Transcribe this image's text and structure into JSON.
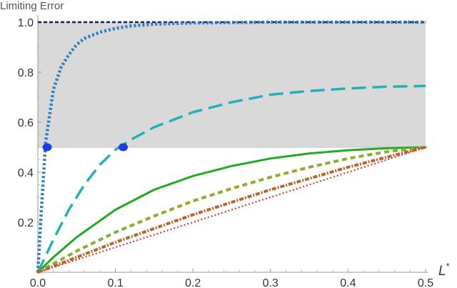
{
  "chart_data": {
    "type": "line",
    "title": "",
    "ylabel": "Limiting Error",
    "xlabel": "L",
    "xlabel_sup": "*",
    "xlim": [
      0,
      0.5
    ],
    "ylim": [
      0,
      1.0
    ],
    "xticks": [
      0.0,
      0.1,
      0.2,
      0.3,
      0.4,
      0.5
    ],
    "xtick_labels": [
      "0.0",
      "0.1",
      "0.2",
      "0.3",
      "0.4",
      "0.5"
    ],
    "yticks": [
      0.2,
      0.4,
      0.6,
      0.8,
      1.0
    ],
    "ytick_labels": [
      "0.2",
      "0.4",
      "0.6",
      "0.8",
      "1.0"
    ],
    "grid": false,
    "legend": "none",
    "shaded_region": {
      "x": [
        0,
        0.5
      ],
      "y": [
        0.5,
        1.0
      ],
      "color": "#d9d9d9"
    },
    "reference_line": {
      "y": 0.5,
      "color": "#cccccc"
    },
    "series": [
      {
        "style": "dashed-dark",
        "color": "#1a1a5e",
        "x": [
          0.0,
          0.5
        ],
        "y": [
          1.0,
          1.0
        ]
      },
      {
        "style": "dotted",
        "color": "#2e7fbf",
        "x": [
          0.0,
          0.005,
          0.01,
          0.02,
          0.03,
          0.04,
          0.05,
          0.06,
          0.08,
          0.1,
          0.12,
          0.15,
          0.2,
          0.3,
          0.4,
          0.5
        ],
        "y": [
          0.0,
          0.27,
          0.52,
          0.73,
          0.82,
          0.87,
          0.91,
          0.935,
          0.96,
          0.975,
          0.985,
          0.992,
          0.997,
          1.0,
          1.0,
          1.0
        ]
      },
      {
        "style": "long-dash",
        "color": "#26b0b5",
        "x": [
          0.0,
          0.02,
          0.04,
          0.06,
          0.08,
          0.1,
          0.12,
          0.15,
          0.2,
          0.25,
          0.3,
          0.35,
          0.4,
          0.45,
          0.5
        ],
        "y": [
          0.0,
          0.13,
          0.25,
          0.35,
          0.43,
          0.49,
          0.53,
          0.58,
          0.64,
          0.68,
          0.71,
          0.725,
          0.735,
          0.742,
          0.745
        ]
      },
      {
        "style": "solid",
        "color": "#22aa22",
        "x": [
          0.0,
          0.02,
          0.05,
          0.1,
          0.15,
          0.2,
          0.25,
          0.3,
          0.35,
          0.4,
          0.45,
          0.5
        ],
        "y": [
          0.0,
          0.06,
          0.14,
          0.25,
          0.33,
          0.385,
          0.425,
          0.455,
          0.475,
          0.488,
          0.496,
          0.5
        ]
      },
      {
        "style": "short-dash",
        "color": "#88b02c",
        "x": [
          0.0,
          0.05,
          0.1,
          0.15,
          0.2,
          0.25,
          0.3,
          0.35,
          0.4,
          0.45,
          0.5
        ],
        "y": [
          0.0,
          0.085,
          0.16,
          0.225,
          0.285,
          0.335,
          0.38,
          0.42,
          0.455,
          0.482,
          0.5
        ]
      },
      {
        "style": "dash-dot",
        "color": "#b5652d",
        "x": [
          0.0,
          0.05,
          0.1,
          0.15,
          0.2,
          0.25,
          0.3,
          0.35,
          0.4,
          0.45,
          0.5
        ],
        "y": [
          0.0,
          0.06,
          0.12,
          0.175,
          0.23,
          0.28,
          0.33,
          0.375,
          0.42,
          0.46,
          0.5
        ]
      },
      {
        "style": "dotted-fine",
        "color": "#e8372b",
        "x": [
          0.0,
          0.1,
          0.2,
          0.3,
          0.4,
          0.5
        ],
        "y": [
          0.0,
          0.1,
          0.2,
          0.3,
          0.4,
          0.5
        ]
      }
    ],
    "markers": [
      {
        "x": 0.012,
        "y": 0.5,
        "color": "#1f3de6"
      },
      {
        "x": 0.11,
        "y": 0.5,
        "color": "#1f3de6"
      }
    ]
  }
}
